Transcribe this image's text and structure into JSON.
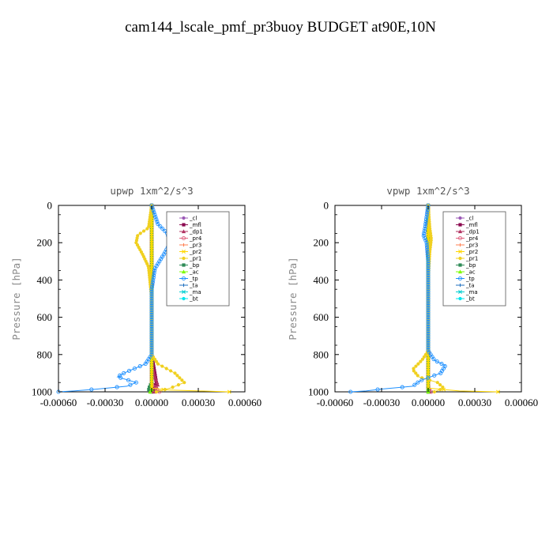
{
  "title": "cam144_lscale_pmf_pr3buoy  BUDGET at90E,10N",
  "colors": {
    "_cl": "#9b59b6",
    "_mfl": "#8b0a50",
    "_dp1": "#b03060",
    "_pr4": "#e0607e",
    "_pr3": "#ff7f50",
    "_pr2": "#ffd700",
    "_pr1": "#f0d020",
    "_bp": "#2e8b57",
    "_ac": "#7cfc00",
    "_tp": "#1e90ff",
    "_ta": "#1f6fbf",
    "_ma": "#00ced1",
    "_bt": "#00e5ee"
  },
  "chart_data": [
    {
      "type": "line",
      "title": "upwp   1xm^2/s^3",
      "ylabel": "Pressure [hPa]",
      "xlim": [
        -0.0006,
        0.0006
      ],
      "ylim": [
        1000,
        0
      ],
      "xticks": [
        "-0.00060",
        "-0.00030",
        "0.00000",
        "0.00030",
        "0.00060"
      ],
      "yticks": [
        "0",
        "200",
        "400",
        "600",
        "800",
        "1000"
      ],
      "legend_position": "top-right",
      "series": [
        {
          "name": "_cl",
          "points": [
            [
              0,
              0
            ],
            [
              0,
              1000
            ]
          ]
        },
        {
          "name": "_mfl",
          "points": [
            [
              0,
              0
            ],
            [
              0,
              800
            ],
            [
              2e-05,
              900
            ],
            [
              3e-05,
              950
            ],
            [
              1e-05,
              990
            ],
            [
              0,
              1000
            ]
          ]
        },
        {
          "name": "_dp1",
          "points": [
            [
              0,
              0
            ],
            [
              0,
              850
            ],
            [
              2e-05,
              920
            ],
            [
              4e-05,
              960
            ],
            [
              2e-05,
              1000
            ]
          ]
        },
        {
          "name": "_pr4",
          "points": [
            [
              0,
              0
            ],
            [
              0,
              960
            ],
            [
              3e-05,
              985
            ],
            [
              5e-05,
              1000
            ]
          ]
        },
        {
          "name": "_pr3",
          "points": [
            [
              0,
              0
            ],
            [
              0,
              1000
            ]
          ]
        },
        {
          "name": "_pr2",
          "points": [
            [
              0,
              0
            ],
            [
              0,
              980
            ],
            [
              0.0001,
              990
            ],
            [
              0.0003,
              995
            ],
            [
              0.0005,
              1000
            ]
          ]
        },
        {
          "name": "_pr1",
          "points": [
            [
              0,
              0
            ],
            [
              -2e-05,
              120
            ],
            [
              -9e-05,
              160
            ],
            [
              -0.0001,
              200
            ],
            [
              -6e-05,
              260
            ],
            [
              -2e-05,
              330
            ],
            [
              0,
              500
            ],
            [
              0,
              800
            ],
            [
              4e-05,
              850
            ],
            [
              0.00015,
              900
            ],
            [
              0.00021,
              950
            ],
            [
              0.00012,
              980
            ],
            [
              3e-05,
              1000
            ]
          ]
        },
        {
          "name": "_bp",
          "points": [
            [
              0,
              0
            ],
            [
              0,
              950
            ],
            [
              -2e-05,
              985
            ],
            [
              -1e-05,
              1000
            ]
          ]
        },
        {
          "name": "_ac",
          "points": [
            [
              0,
              0
            ],
            [
              0,
              990
            ],
            [
              -1e-05,
              1000
            ]
          ]
        },
        {
          "name": "_tp",
          "points": [
            [
              0,
              0
            ],
            [
              4e-05,
              100
            ],
            [
              0.0001,
              150
            ],
            [
              0.00012,
              200
            ],
            [
              8e-05,
              260
            ],
            [
              2e-05,
              340
            ],
            [
              0,
              450
            ],
            [
              0,
              800
            ],
            [
              -4e-05,
              850
            ],
            [
              -0.00018,
              900
            ],
            [
              -0.00022,
              920
            ],
            [
              -0.0001,
              950
            ],
            [
              -0.00016,
              970
            ],
            [
              -0.00035,
              985
            ],
            [
              -0.0005,
              995
            ],
            [
              -0.0006,
              1000
            ]
          ]
        },
        {
          "name": "_ta",
          "points": [
            [
              0,
              0
            ],
            [
              0,
              1000
            ]
          ]
        },
        {
          "name": "_ma",
          "points": [
            [
              0,
              0
            ],
            [
              0,
              1000
            ]
          ]
        },
        {
          "name": "_bt",
          "points": [
            [
              0,
              0
            ],
            [
              0,
              1000
            ]
          ]
        }
      ]
    },
    {
      "type": "line",
      "title": "vpwp   1xm^2/s^3",
      "ylabel": "Pressure [hPa]",
      "xlim": [
        -0.0006,
        0.0006
      ],
      "ylim": [
        1000,
        0
      ],
      "xticks": [
        "-0.00060",
        "-0.00030",
        "0.00000",
        "0.00030",
        "0.00060"
      ],
      "yticks": [
        "0",
        "200",
        "400",
        "600",
        "800",
        "1000"
      ],
      "legend_position": "top-right",
      "series": [
        {
          "name": "_cl",
          "points": [
            [
              0,
              0
            ],
            [
              0,
              1000
            ]
          ]
        },
        {
          "name": "_mfl",
          "points": [
            [
              0,
              0
            ],
            [
              0,
              1000
            ]
          ]
        },
        {
          "name": "_dp1",
          "points": [
            [
              0,
              0
            ],
            [
              0,
              950
            ],
            [
              1e-05,
              1000
            ]
          ]
        },
        {
          "name": "_pr4",
          "points": [
            [
              0,
              0
            ],
            [
              0,
              980
            ],
            [
              2e-05,
              1000
            ]
          ]
        },
        {
          "name": "_pr3",
          "points": [
            [
              0,
              0
            ],
            [
              0,
              1000
            ]
          ]
        },
        {
          "name": "_pr2",
          "points": [
            [
              0,
              0
            ],
            [
              0,
              980
            ],
            [
              0.0002,
              995
            ],
            [
              0.00045,
              1000
            ]
          ]
        },
        {
          "name": "_pr1",
          "points": [
            [
              0,
              0
            ],
            [
              1e-05,
              120
            ],
            [
              2e-05,
              180
            ],
            [
              1e-05,
              250
            ],
            [
              0,
              400
            ],
            [
              0,
              780
            ],
            [
              -4e-05,
              830
            ],
            [
              -0.0001,
              880
            ],
            [
              -6e-05,
              920
            ],
            [
              6e-05,
              950
            ],
            [
              0.0001,
              980
            ],
            [
              4e-05,
              1000
            ]
          ]
        },
        {
          "name": "_bp",
          "points": [
            [
              0,
              0
            ],
            [
              0,
              1000
            ]
          ]
        },
        {
          "name": "_ac",
          "points": [
            [
              0,
              0
            ],
            [
              0,
              1000
            ]
          ]
        },
        {
          "name": "_tp",
          "points": [
            [
              0,
              0
            ],
            [
              -2e-05,
              120
            ],
            [
              -3e-05,
              160
            ],
            [
              -1e-05,
              200
            ],
            [
              0,
              300
            ],
            [
              0,
              780
            ],
            [
              4e-05,
              830
            ],
            [
              0.00011,
              860
            ],
            [
              8e-05,
              900
            ],
            [
              -5e-05,
              940
            ],
            [
              -0.0001,
              970
            ],
            [
              -0.0003,
              985
            ],
            [
              -0.0004,
              995
            ],
            [
              -0.0005,
              1000
            ]
          ]
        },
        {
          "name": "_ta",
          "points": [
            [
              0,
              0
            ],
            [
              0,
              1000
            ]
          ]
        },
        {
          "name": "_ma",
          "points": [
            [
              0,
              0
            ],
            [
              0,
              1000
            ]
          ]
        },
        {
          "name": "_bt",
          "points": [
            [
              0,
              0
            ],
            [
              0,
              1000
            ]
          ]
        }
      ]
    }
  ]
}
